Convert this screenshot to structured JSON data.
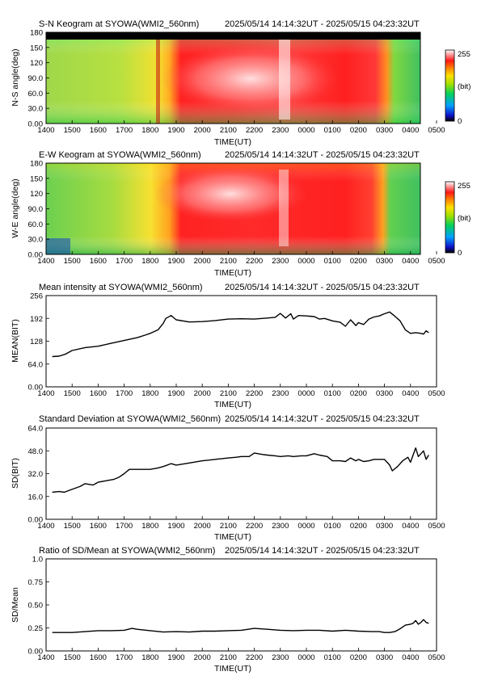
{
  "meta": {
    "time_range": "2025/05/14 14:14:32UT - 2025/05/15 04:23:32UT"
  },
  "chart_data": [
    {
      "type": "heatmap",
      "title": "S-N Keogram at SYOWA(WMI2_560nm)",
      "xlabel": "TIME(UT)",
      "ylabel": "N-S angle(deg)",
      "x_ticks": [
        "1400",
        "1500",
        "1600",
        "1700",
        "1800",
        "1900",
        "2000",
        "2100",
        "2200",
        "2300",
        "0000",
        "0100",
        "0200",
        "0300",
        "0400",
        "0500"
      ],
      "y_ticks": [
        "0.00",
        "30.0",
        "60.0",
        "90.0",
        "120",
        "150",
        "180"
      ],
      "ylim": [
        0,
        180
      ],
      "colorbar": {
        "max_label": "255",
        "unit_label": "(bit)",
        "min_label": "0"
      }
    },
    {
      "type": "heatmap",
      "title": "E-W Keogram at SYOWA(WMI2_560nm)",
      "xlabel": "TIME(UT)",
      "ylabel": "W-E angle(deg)",
      "x_ticks": [
        "1400",
        "1500",
        "1600",
        "1700",
        "1800",
        "1900",
        "2000",
        "2100",
        "2200",
        "2300",
        "0000",
        "0100",
        "0200",
        "0300",
        "0400",
        "0500"
      ],
      "y_ticks": [
        "0.00",
        "30.0",
        "60.0",
        "90.0",
        "120",
        "150",
        "180"
      ],
      "ylim": [
        0,
        180
      ],
      "colorbar": {
        "max_label": "255",
        "unit_label": "(bit)",
        "min_label": "0"
      }
    },
    {
      "type": "line",
      "title": "Mean intensity at SYOWA(WMI2_560nm)",
      "xlabel": "TIME(UT)",
      "ylabel": "MEAN(BIT)",
      "x_ticks": [
        "1400",
        "1500",
        "1600",
        "1700",
        "1800",
        "1900",
        "2000",
        "2100",
        "2200",
        "2300",
        "0000",
        "0100",
        "0200",
        "0300",
        "0400",
        "0500"
      ],
      "y_ticks": [
        "0.00",
        "64.0",
        "128",
        "192",
        "256"
      ],
      "ylim": [
        0,
        256
      ],
      "xlim_hours": [
        14,
        29
      ],
      "x_hours": [
        14.24,
        14.5,
        14.75,
        15.0,
        15.5,
        16.0,
        16.5,
        17.0,
        17.5,
        17.8,
        18.0,
        18.3,
        18.5,
        18.6,
        18.8,
        19.0,
        19.5,
        20.0,
        20.5,
        21.0,
        21.5,
        22.0,
        22.5,
        22.8,
        23.0,
        23.2,
        23.4,
        23.5,
        23.7,
        24.0,
        24.3,
        24.5,
        24.7,
        25.0,
        25.3,
        25.5,
        25.7,
        25.9,
        26.0,
        26.2,
        26.4,
        26.6,
        26.8,
        27.0,
        27.2,
        27.4,
        27.6,
        27.8,
        28.0,
        28.2,
        28.4,
        28.5,
        28.6,
        28.7
      ],
      "values": [
        85,
        86,
        92,
        102,
        110,
        114,
        122,
        130,
        138,
        145,
        150,
        160,
        178,
        192,
        200,
        188,
        182,
        183,
        186,
        190,
        191,
        190,
        193,
        195,
        206,
        193,
        205,
        190,
        200,
        199,
        197,
        190,
        192,
        185,
        181,
        170,
        188,
        172,
        180,
        175,
        190,
        196,
        199,
        205,
        210,
        198,
        185,
        160,
        150,
        152,
        150,
        148,
        157,
        152
      ]
    },
    {
      "type": "line",
      "title": "Standard Deviation at SYOWA(WMI2_560nm)",
      "xlabel": "TIME(UT)",
      "ylabel": "SD(BIT)",
      "x_ticks": [
        "1400",
        "1500",
        "1600",
        "1700",
        "1800",
        "1900",
        "2000",
        "2100",
        "2200",
        "2300",
        "0000",
        "0100",
        "0200",
        "0300",
        "0400",
        "0500"
      ],
      "y_ticks": [
        "0.00",
        "16.0",
        "32.0",
        "48.0",
        "64.0"
      ],
      "ylim": [
        0,
        64
      ],
      "xlim_hours": [
        14,
        29
      ],
      "x_hours": [
        14.24,
        14.5,
        14.7,
        15.0,
        15.3,
        15.5,
        15.8,
        16.0,
        16.3,
        16.6,
        16.8,
        17.0,
        17.2,
        17.5,
        18.0,
        18.3,
        18.5,
        18.8,
        19.0,
        19.5,
        20.0,
        20.5,
        21.0,
        21.3,
        21.5,
        21.8,
        22.0,
        22.3,
        22.5,
        22.8,
        23.0,
        23.3,
        23.5,
        23.8,
        24.0,
        24.3,
        24.5,
        24.8,
        25.0,
        25.3,
        25.5,
        25.7,
        25.9,
        26.0,
        26.2,
        26.4,
        26.6,
        26.8,
        27.0,
        27.1,
        27.2,
        27.3,
        27.5,
        27.7,
        27.9,
        28.0,
        28.1,
        28.2,
        28.3,
        28.4,
        28.5,
        28.6,
        28.7
      ],
      "values": [
        19,
        19.5,
        19,
        21,
        23,
        25,
        24,
        26,
        27,
        28,
        29.5,
        32,
        35,
        35,
        35,
        36,
        37,
        39,
        38,
        39.5,
        41,
        42,
        43,
        43.5,
        44,
        44,
        46.5,
        45.5,
        45,
        44.5,
        44,
        44.5,
        44,
        44.5,
        44.5,
        46,
        45,
        44,
        41,
        41,
        40.5,
        43,
        41,
        42,
        40.5,
        41,
        42,
        42,
        42,
        40,
        38,
        34,
        37,
        41,
        43.5,
        40,
        45,
        50,
        44,
        46,
        48,
        42,
        45
      ]
    },
    {
      "type": "line",
      "title": "Ratio of SD/Mean at SYOWA(WMI2_560nm)",
      "xlabel": "TIME(UT)",
      "ylabel": "SD/Mean",
      "x_ticks": [
        "1400",
        "1500",
        "1600",
        "1700",
        "1800",
        "1900",
        "2000",
        "2100",
        "2200",
        "2300",
        "0000",
        "0100",
        "0200",
        "0300",
        "0400",
        "0500"
      ],
      "y_ticks": [
        "0.00",
        "0.25",
        "0.50",
        "0.75",
        "1.0"
      ],
      "ylim": [
        0,
        1.0
      ],
      "xlim_hours": [
        14,
        29
      ],
      "x_hours": [
        14.24,
        14.5,
        15.0,
        15.5,
        16.0,
        16.5,
        17.0,
        17.3,
        17.5,
        18.0,
        18.5,
        19.0,
        19.5,
        20.0,
        20.5,
        21.0,
        21.5,
        22.0,
        22.5,
        23.0,
        23.5,
        24.0,
        24.5,
        25.0,
        25.5,
        26.0,
        26.5,
        26.8,
        27.0,
        27.2,
        27.4,
        27.6,
        27.8,
        28.0,
        28.1,
        28.2,
        28.3,
        28.4,
        28.5,
        28.6,
        28.7
      ],
      "values": [
        0.2,
        0.2,
        0.2,
        0.21,
        0.22,
        0.22,
        0.225,
        0.245,
        0.235,
        0.22,
        0.205,
        0.21,
        0.205,
        0.215,
        0.215,
        0.22,
        0.225,
        0.245,
        0.235,
        0.225,
        0.22,
        0.225,
        0.225,
        0.215,
        0.225,
        0.215,
        0.21,
        0.21,
        0.2,
        0.2,
        0.21,
        0.24,
        0.28,
        0.29,
        0.3,
        0.33,
        0.29,
        0.31,
        0.34,
        0.31,
        0.3
      ]
    }
  ]
}
